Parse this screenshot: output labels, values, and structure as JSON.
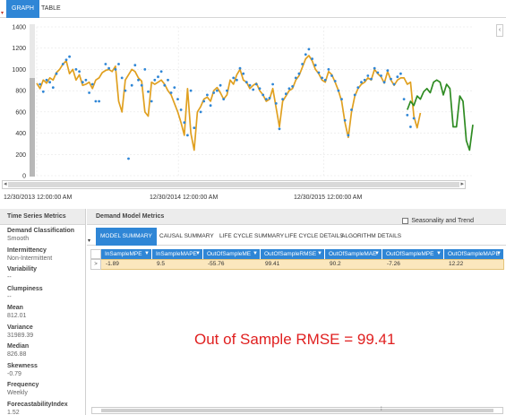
{
  "tabs": [
    {
      "label": "GRAPH",
      "active": true
    },
    {
      "label": "TABLE",
      "active": false
    }
  ],
  "chart_data": {
    "type": "line",
    "yticks": [
      "1400",
      "1200",
      "1000",
      "800",
      "600",
      "400",
      "200",
      "0"
    ],
    "ylim": [
      0,
      1400
    ],
    "x_date_labels": [
      "12/30/2013 12:00:00 AM",
      "12/30/2014 12:00:00 AM",
      "12/30/2015 12:00:00 AM"
    ],
    "series": [
      {
        "color": "#e0a020",
        "values": [
          870,
          820,
          900,
          870,
          920,
          900,
          970,
          1000,
          1050,
          1080,
          960,
          1000,
          900,
          950,
          850,
          860,
          880,
          820,
          900,
          920,
          970,
          990,
          1000,
          980,
          1030,
          700,
          600,
          900,
          950,
          1000,
          980,
          920,
          890,
          600,
          560,
          880,
          860,
          880,
          900,
          860,
          800,
          760,
          680,
          600,
          500,
          380,
          820,
          400,
          240,
          600,
          650,
          720,
          740,
          700,
          800,
          830,
          780,
          720,
          760,
          900,
          860,
          950,
          1000,
          900,
          880,
          820,
          850,
          870,
          800,
          760,
          700,
          720,
          820,
          640,
          460,
          700,
          750,
          800,
          820,
          900,
          940,
          1020,
          1100,
          1130,
          1080,
          1000,
          960,
          900,
          880,
          980,
          950,
          880,
          800,
          700,
          500,
          360,
          600,
          750,
          820,
          860,
          880,
          920,
          900,
          1000,
          960,
          930,
          870,
          980,
          900,
          850,
          900,
          920,
          920,
          860,
          880,
          560,
          450,
          590
        ],
        "x_start": 0
      },
      {
        "color": "#2e8b22",
        "values": [
          620,
          700,
          660,
          750,
          720,
          790,
          820,
          780,
          880,
          900,
          880,
          760,
          860,
          820,
          460,
          460,
          750,
          700,
          330,
          240,
          480
        ],
        "x_start": 113
      }
    ],
    "scatter": {
      "color": "#2f86d6",
      "points": [
        [
          1,
          860
        ],
        [
          2,
          790
        ],
        [
          3,
          900
        ],
        [
          4,
          880
        ],
        [
          5,
          830
        ],
        [
          6,
          960
        ],
        [
          8,
          1050
        ],
        [
          9,
          1090
        ],
        [
          10,
          1120
        ],
        [
          12,
          1000
        ],
        [
          13,
          980
        ],
        [
          14,
          880
        ],
        [
          15,
          900
        ],
        [
          16,
          780
        ],
        [
          17,
          860
        ],
        [
          18,
          700
        ],
        [
          19,
          700
        ],
        [
          21,
          1050
        ],
        [
          22,
          1010
        ],
        [
          24,
          1000
        ],
        [
          25,
          1050
        ],
        [
          26,
          920
        ],
        [
          27,
          800
        ],
        [
          28,
          160
        ],
        [
          29,
          850
        ],
        [
          30,
          1040
        ],
        [
          31,
          900
        ],
        [
          32,
          850
        ],
        [
          33,
          1000
        ],
        [
          34,
          790
        ],
        [
          35,
          700
        ],
        [
          36,
          900
        ],
        [
          37,
          930
        ],
        [
          38,
          980
        ],
        [
          39,
          850
        ],
        [
          40,
          900
        ],
        [
          41,
          780
        ],
        [
          42,
          830
        ],
        [
          43,
          720
        ],
        [
          44,
          620
        ],
        [
          45,
          500
        ],
        [
          46,
          380
        ],
        [
          47,
          800
        ],
        [
          48,
          450
        ],
        [
          50,
          600
        ],
        [
          51,
          700
        ],
        [
          52,
          760
        ],
        [
          53,
          660
        ],
        [
          54,
          780
        ],
        [
          55,
          800
        ],
        [
          56,
          850
        ],
        [
          57,
          720
        ],
        [
          58,
          800
        ],
        [
          60,
          920
        ],
        [
          61,
          900
        ],
        [
          62,
          1010
        ],
        [
          63,
          960
        ],
        [
          64,
          880
        ],
        [
          65,
          850
        ],
        [
          66,
          810
        ],
        [
          67,
          860
        ],
        [
          68,
          820
        ],
        [
          69,
          760
        ],
        [
          70,
          720
        ],
        [
          71,
          730
        ],
        [
          72,
          860
        ],
        [
          73,
          680
        ],
        [
          74,
          440
        ],
        [
          75,
          720
        ],
        [
          76,
          770
        ],
        [
          77,
          820
        ],
        [
          78,
          840
        ],
        [
          79,
          920
        ],
        [
          80,
          960
        ],
        [
          81,
          1050
        ],
        [
          82,
          1140
        ],
        [
          83,
          1190
        ],
        [
          84,
          1100
        ],
        [
          85,
          1040
        ],
        [
          86,
          970
        ],
        [
          87,
          920
        ],
        [
          88,
          900
        ],
        [
          89,
          1000
        ],
        [
          90,
          940
        ],
        [
          91,
          890
        ],
        [
          92,
          800
        ],
        [
          93,
          720
        ],
        [
          94,
          520
        ],
        [
          95,
          380
        ],
        [
          96,
          620
        ],
        [
          97,
          760
        ],
        [
          98,
          830
        ],
        [
          99,
          880
        ],
        [
          100,
          900
        ],
        [
          101,
          940
        ],
        [
          102,
          910
        ],
        [
          103,
          1010
        ],
        [
          104,
          970
        ],
        [
          105,
          940
        ],
        [
          106,
          880
        ],
        [
          107,
          990
        ],
        [
          108,
          910
        ],
        [
          109,
          860
        ],
        [
          110,
          930
        ],
        [
          111,
          960
        ],
        [
          112,
          720
        ],
        [
          113,
          570
        ],
        [
          114,
          460
        ],
        [
          115,
          540
        ]
      ]
    }
  },
  "time_series_metrics": {
    "title": "Time Series Metrics",
    "items": [
      {
        "key": "Demand Classification",
        "value": "Smooth"
      },
      {
        "key": "Intermittency",
        "value": "Non-Intermittent"
      },
      {
        "key": "Variability",
        "value": "--"
      },
      {
        "key": "Clumpiness",
        "value": "--"
      },
      {
        "key": "Mean",
        "value": "812.01"
      },
      {
        "key": "Variance",
        "value": "31989.39"
      },
      {
        "key": "Median",
        "value": "826.88"
      },
      {
        "key": "Skewness",
        "value": "-0.79"
      },
      {
        "key": "Frequency",
        "value": "Weekly"
      },
      {
        "key": "ForecastabilityIndex",
        "value": "1.52"
      }
    ]
  },
  "demand_model_metrics": {
    "title": "Demand Model Metrics",
    "seasonality_label": "Seasonality and Trend",
    "subtabs": [
      {
        "label": "MODEL SUMMARY",
        "active": true
      },
      {
        "label": "CAUSAL SUMMARY",
        "active": false
      },
      {
        "label": "LIFE CYCLE SUMMARY",
        "active": false
      },
      {
        "label": "LIFE CYCLE DETAILS",
        "active": false
      },
      {
        "label": "ALGORITHM DETAILS",
        "active": false
      }
    ],
    "columns": [
      "InSampleMPE",
      "InSampleMAPE",
      "OutOfSampleME",
      "OutOfSampleRMSE",
      "OutOfSampleMAE",
      "OutOfSampleMPE",
      "OutOfSampleMAPE"
    ],
    "row": [
      "-1.89",
      "9.5",
      "-55.76",
      "99.41",
      "90.2",
      "-7.26",
      "12.22"
    ],
    "row_indicator": ">"
  },
  "annotation": "Out of Sample RMSE = 99.41",
  "colors": {
    "accent": "#2f86d6",
    "forecast_line": "#e0a020",
    "future_line": "#2e8b22",
    "annotation": "#e02020",
    "row_highlight": "#fbe7bd"
  }
}
